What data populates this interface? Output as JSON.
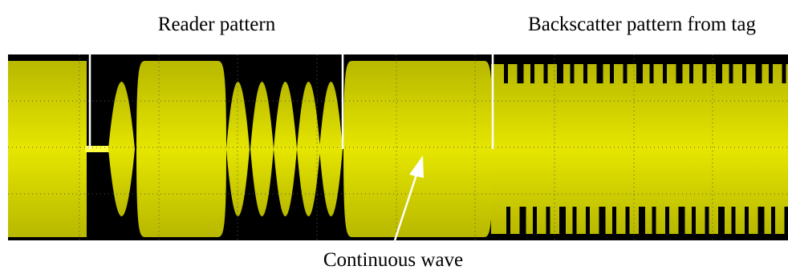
{
  "labels": {
    "reader": "Reader pattern",
    "backscatter": "Backscatter pattern from tag",
    "continuous": "Continuous wave"
  }
}
